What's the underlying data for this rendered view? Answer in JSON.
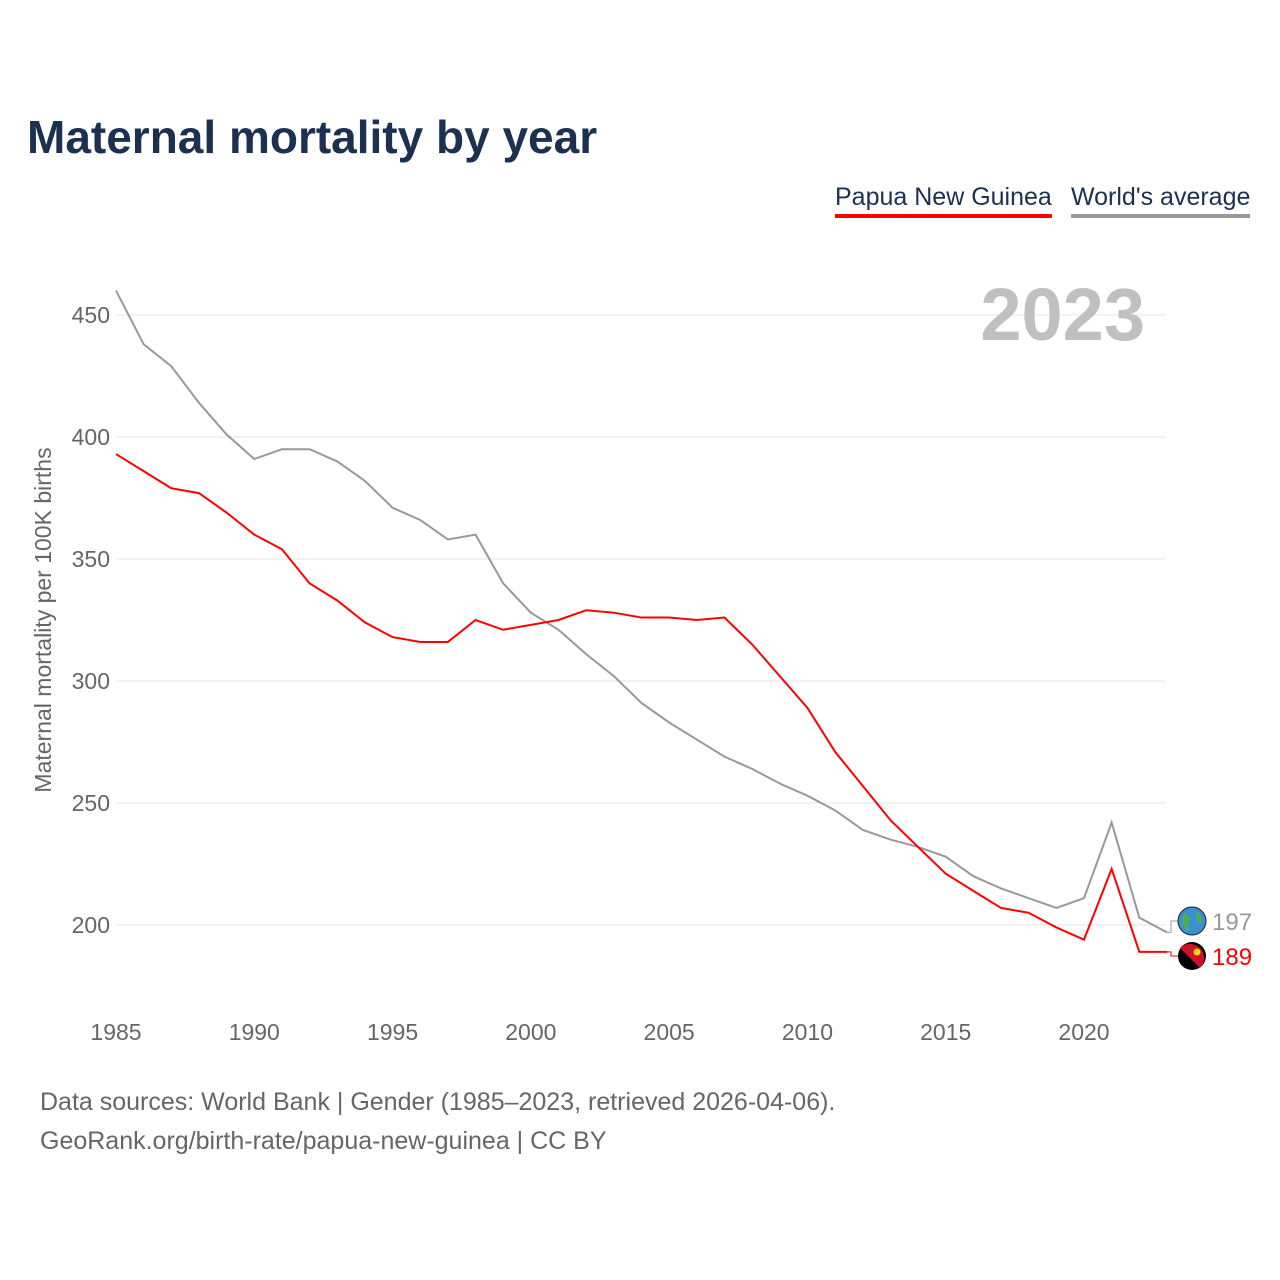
{
  "title": "Maternal mortality by year",
  "legend": [
    {
      "label": "Papua New Guinea",
      "color": "#ff0000"
    },
    {
      "label": "World's average",
      "color": "#999999"
    }
  ],
  "year_label": "2023",
  "footer": {
    "line1": "Data sources: World Bank | Gender (1985–2023, retrieved 2026-04-06).",
    "line2": "GeoRank.org/birth-rate/papua-new-guinea | CC BY"
  },
  "chart_data": {
    "type": "line",
    "title": "Maternal mortality by year",
    "xlabel": "",
    "ylabel": "Maternal mortality per 100K births",
    "xlim": [
      1985,
      2023
    ],
    "ylim": [
      180,
      465
    ],
    "yticks": [
      200,
      250,
      300,
      350,
      400,
      450
    ],
    "xticks": [
      1985,
      1990,
      1995,
      2000,
      2005,
      2010,
      2015,
      2020
    ],
    "grid": true,
    "legend_position": "top-right",
    "x": [
      1985,
      1986,
      1987,
      1988,
      1989,
      1990,
      1991,
      1992,
      1993,
      1994,
      1995,
      1996,
      1997,
      1998,
      1999,
      2000,
      2001,
      2002,
      2003,
      2004,
      2005,
      2006,
      2007,
      2008,
      2009,
      2010,
      2011,
      2012,
      2013,
      2014,
      2015,
      2016,
      2017,
      2018,
      2019,
      2020,
      2021,
      2022,
      2023
    ],
    "series": [
      {
        "name": "Papua New Guinea",
        "color": "#ff0000",
        "end_label": "189",
        "values": [
          393,
          386,
          379,
          377,
          369,
          360,
          354,
          340,
          333,
          324,
          318,
          316,
          316,
          325,
          321,
          323,
          325,
          329,
          328,
          326,
          326,
          325,
          326,
          315,
          302,
          289,
          271,
          257,
          243,
          232,
          221,
          214,
          207,
          205,
          199,
          194,
          223,
          189,
          189
        ]
      },
      {
        "name": "World's average",
        "color": "#999999",
        "end_label": "197",
        "values": [
          460,
          438,
          429,
          414,
          401,
          391,
          395,
          395,
          390,
          382,
          371,
          366,
          358,
          360,
          340,
          328,
          321,
          311,
          302,
          291,
          283,
          276,
          269,
          264,
          258,
          253,
          247,
          239,
          235,
          232,
          228,
          220,
          215,
          211,
          207,
          211,
          242,
          203,
          197
        ]
      }
    ]
  }
}
